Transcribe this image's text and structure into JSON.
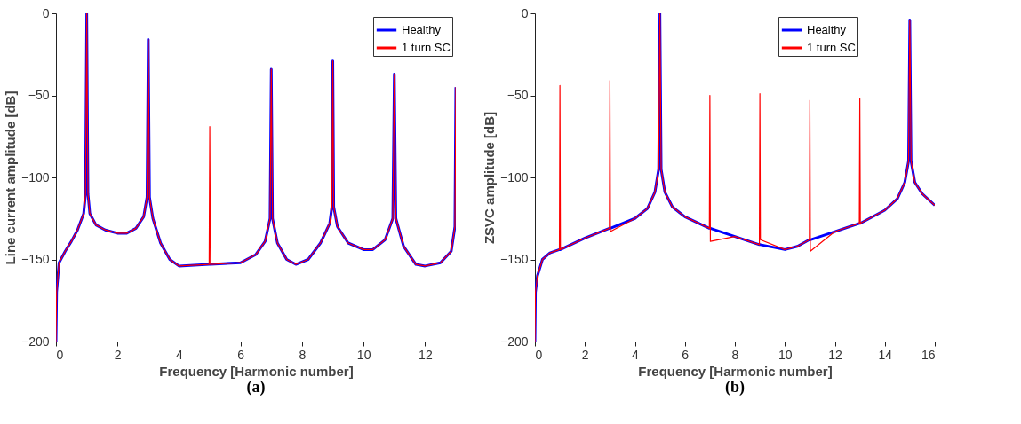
{
  "chart_data": [
    {
      "type": "line",
      "xlabel": "Frequency [Harmonic number]",
      "ylabel": "Line current amplitude [dB]",
      "annotations": [
        "(a)"
      ],
      "x": [
        0,
        0.02,
        0.1,
        0.3,
        0.5,
        0.7,
        0.9,
        0.96,
        1.0,
        1.04,
        1.1,
        1.3,
        1.6,
        2.0,
        2.3,
        2.6,
        2.85,
        2.96,
        3.0,
        3.04,
        3.15,
        3.4,
        3.7,
        4.0,
        4.98,
        5.0,
        5.02,
        6,
        6.5,
        6.8,
        6.96,
        7.0,
        7.04,
        7.2,
        7.5,
        7.8,
        8.2,
        8.6,
        8.9,
        8.97,
        9.0,
        9.03,
        9.15,
        9.5,
        10.0,
        10.3,
        10.7,
        10.95,
        11.0,
        11.05,
        11.3,
        11.7,
        12.0,
        12.5,
        12.85,
        12.97,
        13.0
      ],
      "series": [
        {
          "name": "Healthy",
          "color": "#0000ff",
          "values": [
            -200,
            -170,
            -152,
            -145,
            -139,
            -132,
            -122,
            -110,
            0,
            -110,
            -122,
            -129,
            -132,
            -134,
            -134,
            -131,
            -124,
            -112,
            -16,
            -112,
            -125,
            -140,
            -150,
            -154,
            -153,
            -153,
            -153,
            -152,
            -147,
            -139,
            -125,
            -34,
            -125,
            -140,
            -150,
            -153,
            -150,
            -140,
            -128,
            -118,
            -29,
            -118,
            -130,
            -140,
            -144,
            -144,
            -138,
            -125,
            -37,
            -125,
            -142,
            -153,
            -154,
            -152,
            -145,
            -130,
            -45
          ]
        },
        {
          "name": "1 turn SC",
          "color": "#ff0000",
          "values": [
            -200,
            -170,
            -152,
            -145,
            -139,
            -132,
            -122,
            -110,
            0,
            -110,
            -122,
            -129,
            -132,
            -134,
            -134,
            -131,
            -124,
            -112,
            -16,
            -112,
            -125,
            -140,
            -150,
            -154,
            -153,
            -69,
            -153,
            -152,
            -147,
            -139,
            -125,
            -34,
            -125,
            -140,
            -150,
            -153,
            -150,
            -140,
            -128,
            -118,
            -29,
            -118,
            -130,
            -140,
            -144,
            -144,
            -138,
            -125,
            -37,
            -125,
            -142,
            -153,
            -154,
            -152,
            -145,
            -130,
            -45
          ]
        }
      ],
      "xlim": [
        0,
        13
      ],
      "xticks": [
        0,
        2,
        4,
        6,
        8,
        10,
        12
      ],
      "ylim": [
        -200,
        0
      ],
      "yticks": [
        -200,
        -150,
        -100,
        -50,
        0
      ],
      "legend": "top right"
    },
    {
      "type": "line",
      "xlabel": "Frequency [Harmonic number]",
      "ylabel": "ZSVC amplitude [dB]",
      "annotations": [
        "(b)"
      ],
      "x": [
        0,
        0.02,
        0.1,
        0.3,
        0.6,
        0.98,
        1.0,
        1.02,
        2,
        2.98,
        3.0,
        3.02,
        4,
        4.5,
        4.8,
        4.95,
        5.0,
        5.05,
        5.2,
        5.5,
        6,
        6.98,
        7.0,
        7.02,
        8,
        8.98,
        9.0,
        9.02,
        10,
        10.5,
        10.98,
        11.0,
        11.02,
        12,
        12.98,
        13.0,
        13.02,
        14,
        14.5,
        14.8,
        14.95,
        15.0,
        15.05,
        15.2,
        15.5,
        16
      ],
      "series": [
        {
          "name": "Healthy",
          "color": "#0000ff",
          "values": [
            -200,
            -170,
            -160,
            -150,
            -146,
            -144,
            -144,
            -144,
            -137,
            -131,
            -131,
            -131,
            -125,
            -119,
            -109,
            -95,
            0,
            -95,
            -109,
            -118,
            -124,
            -131,
            -131,
            -131,
            -136,
            -141,
            -141,
            -141,
            -144,
            -142,
            -138,
            -138,
            -138,
            -133,
            -128,
            -128,
            -128,
            -120,
            -113,
            -103,
            -90,
            -4,
            -90,
            -103,
            -110,
            -117
          ]
        },
        {
          "name": "1 turn SC",
          "color": "#ff0000",
          "values": [
            -200,
            -170,
            -160,
            -150,
            -146,
            -144,
            -44,
            -144,
            -137,
            -131,
            -41,
            -133,
            -125,
            -119,
            -109,
            -95,
            0,
            -95,
            -109,
            -118,
            -124,
            -131,
            -50,
            -139,
            -136,
            -141,
            -49,
            -138,
            -144,
            -142,
            -138,
            -53,
            -145,
            -133,
            -128,
            -52,
            -128,
            -120,
            -113,
            -103,
            -90,
            -4,
            -90,
            -103,
            -110,
            -117
          ]
        }
      ],
      "xlim": [
        0,
        16
      ],
      "xticks": [
        0,
        2,
        4,
        6,
        8,
        10,
        12,
        14,
        16
      ],
      "ylim": [
        -200,
        0
      ],
      "yticks": [
        -200,
        -150,
        -100,
        -50,
        0
      ],
      "legend": "top right"
    }
  ]
}
